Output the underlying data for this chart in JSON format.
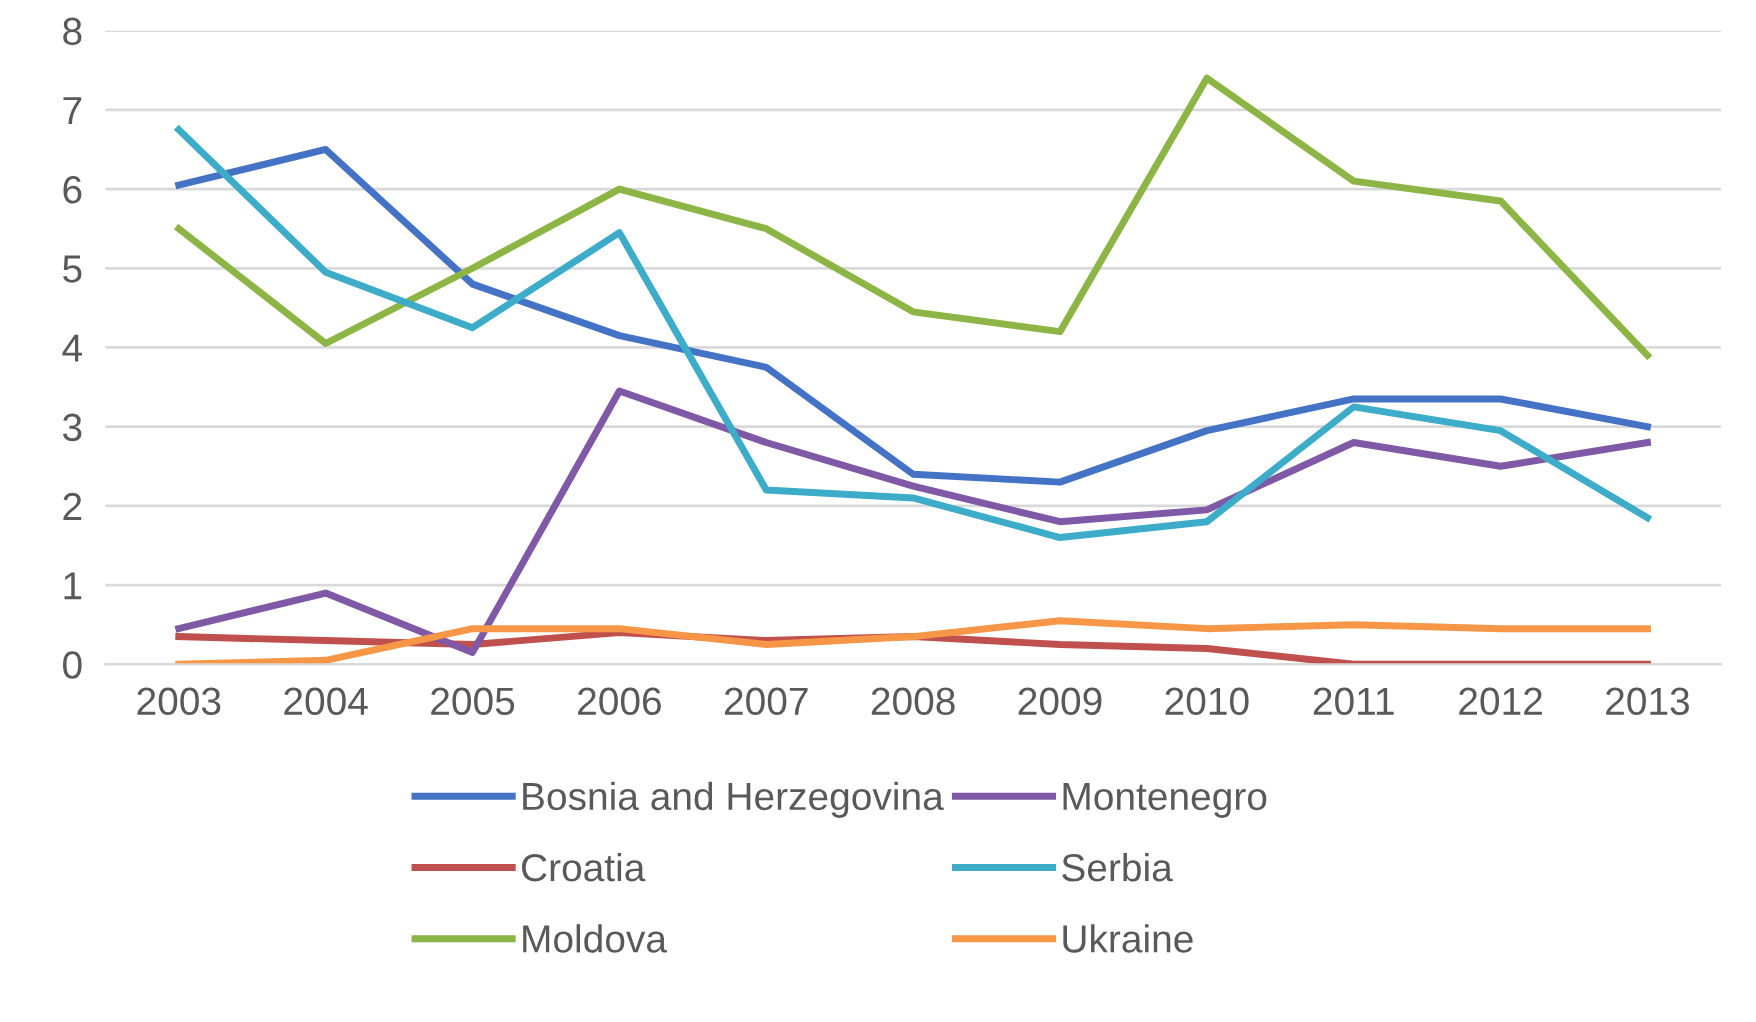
{
  "chart_data": {
    "type": "line",
    "categories": [
      "2003",
      "2004",
      "2005",
      "2006",
      "2007",
      "2008",
      "2009",
      "2010",
      "2011",
      "2012",
      "2013"
    ],
    "ylim": [
      0,
      8
    ],
    "yticks": [
      0,
      1,
      2,
      3,
      4,
      5,
      6,
      7,
      8
    ],
    "grid": "y",
    "legend": "bottom",
    "marker": "none",
    "line_style": "solid",
    "series": [
      {
        "name": "Bosnia and Herzegovina",
        "color": "#4472c4",
        "values": [
          6.05,
          6.5,
          4.8,
          4.15,
          3.75,
          2.4,
          2.3,
          2.95,
          3.35,
          3.35,
          3.0
        ]
      },
      {
        "name": "Croatia",
        "color": "#c0504d",
        "values": [
          0.35,
          0.3,
          0.25,
          0.4,
          0.3,
          0.35,
          0.25,
          0.2,
          0.0,
          0.0,
          0.0
        ]
      },
      {
        "name": "Moldova",
        "color": "#8db545",
        "values": [
          5.5,
          4.05,
          5.0,
          6.0,
          5.5,
          4.45,
          4.2,
          7.4,
          6.1,
          5.85,
          3.9
        ]
      },
      {
        "name": "Montenegro",
        "color": "#7f58a6",
        "values": [
          0.45,
          0.9,
          0.15,
          3.45,
          2.8,
          2.25,
          1.8,
          1.95,
          2.8,
          2.5,
          2.8
        ]
      },
      {
        "name": "Serbia",
        "color": "#3cacc9",
        "values": [
          6.75,
          4.95,
          4.25,
          5.45,
          2.2,
          2.1,
          1.6,
          1.8,
          3.25,
          2.95,
          1.85
        ]
      },
      {
        "name": "Ukraine",
        "color": "#f79646",
        "values": [
          0.0,
          0.05,
          0.45,
          0.45,
          0.25,
          0.35,
          0.55,
          0.45,
          0.5,
          0.45,
          0.45
        ]
      }
    ]
  }
}
